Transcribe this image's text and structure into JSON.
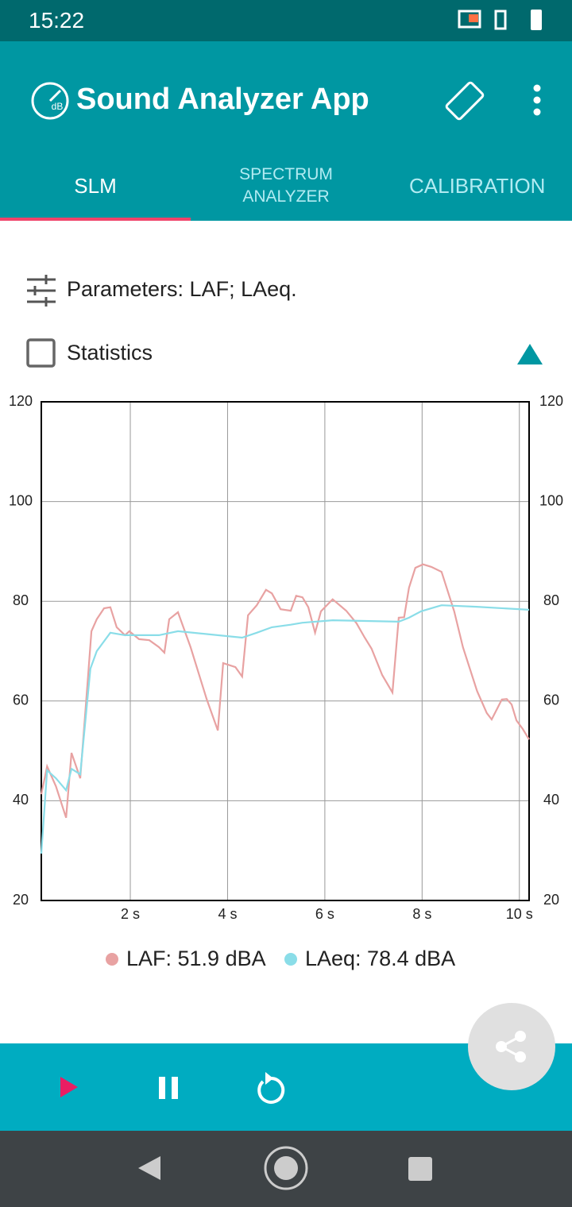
{
  "status_bar": {
    "time": "15:22"
  },
  "app_bar": {
    "icon_label": "dB",
    "title": "Sound Analyzer App"
  },
  "tabs": [
    {
      "label": "SLM",
      "selected": true
    },
    {
      "label": "SPECTRUM ANALYZER",
      "selected": false
    },
    {
      "label": "CALIBRATION",
      "selected": false
    }
  ],
  "parameters": "Parameters: LAF; LAeq.",
  "statistics": {
    "label": "Statistics",
    "checked": false
  },
  "chart_data": {
    "type": "line",
    "xlim": [
      0.17,
      10.2
    ],
    "xticks": [
      {
        "value": 2,
        "label": "2 s"
      },
      {
        "value": 4,
        "label": "4 s"
      },
      {
        "value": 6,
        "label": "6 s"
      },
      {
        "value": 8,
        "label": "8 s"
      },
      {
        "value": 10,
        "label": "10 s"
      }
    ],
    "ylim": [
      20,
      120
    ],
    "yticks": [
      20,
      40,
      60,
      80,
      100,
      120
    ],
    "grid": true,
    "series": [
      {
        "name": "LAF: 51.9 dBA",
        "color": "#e8a2a2",
        "x": [
          0.17,
          0.29,
          0.47,
          0.68,
          0.79,
          0.97,
          1.12,
          1.2,
          1.31,
          1.46,
          1.59,
          1.72,
          1.89,
          1.98,
          2.18,
          2.39,
          2.59,
          2.7,
          2.8,
          2.98,
          3.24,
          3.57,
          3.8,
          3.91,
          4.16,
          4.3,
          4.42,
          4.6,
          4.79,
          4.91,
          5.09,
          5.3,
          5.41,
          5.54,
          5.66,
          5.8,
          5.92,
          6.16,
          6.44,
          6.65,
          6.82,
          6.96,
          7.18,
          7.39,
          7.52,
          7.63,
          7.73,
          7.86,
          8.02,
          8.19,
          8.4,
          8.66,
          8.84,
          9.13,
          9.33,
          9.43,
          9.64,
          9.74,
          9.84,
          9.94,
          10.07,
          10.2
        ],
        "values": [
          41.3,
          46.9,
          42.9,
          36.6,
          49.6,
          44.5,
          63.6,
          74,
          76.4,
          78.6,
          78.8,
          74.8,
          73.2,
          74,
          72.4,
          72.2,
          70.8,
          69.7,
          76.4,
          77.8,
          70.8,
          60.4,
          54.1,
          67.6,
          66.8,
          64.9,
          77.2,
          79.2,
          82.3,
          81.6,
          78.4,
          78.1,
          81.1,
          80.8,
          78.8,
          73.7,
          78,
          80.4,
          78.1,
          75.6,
          72.7,
          70.5,
          65.2,
          61.7,
          76.7,
          76.8,
          82.7,
          86.7,
          87.4,
          86.9,
          85.9,
          78,
          70.8,
          62,
          57.6,
          56.3,
          60.3,
          60.4,
          59.3,
          56.1,
          54.4,
          52.3
        ]
      },
      {
        "name": "LAeq: 78.4 dBA",
        "color": "#8adde8",
        "x": [
          0.17,
          0.29,
          0.47,
          0.68,
          0.79,
          0.97,
          1.18,
          1.31,
          1.59,
          1.89,
          2.59,
          2.98,
          4.3,
          4.6,
          4.91,
          5.3,
          5.54,
          6.16,
          7.52,
          7.73,
          7.98,
          8.4,
          9.12,
          10.2
        ],
        "values": [
          29.4,
          46.1,
          44.5,
          42.1,
          46.4,
          45.3,
          66.5,
          70,
          73.7,
          73.2,
          73.2,
          74,
          72.7,
          73.7,
          74.8,
          75.3,
          75.7,
          76.2,
          75.9,
          76.7,
          78,
          79.2,
          78.9,
          78.3
        ]
      }
    ]
  }
}
